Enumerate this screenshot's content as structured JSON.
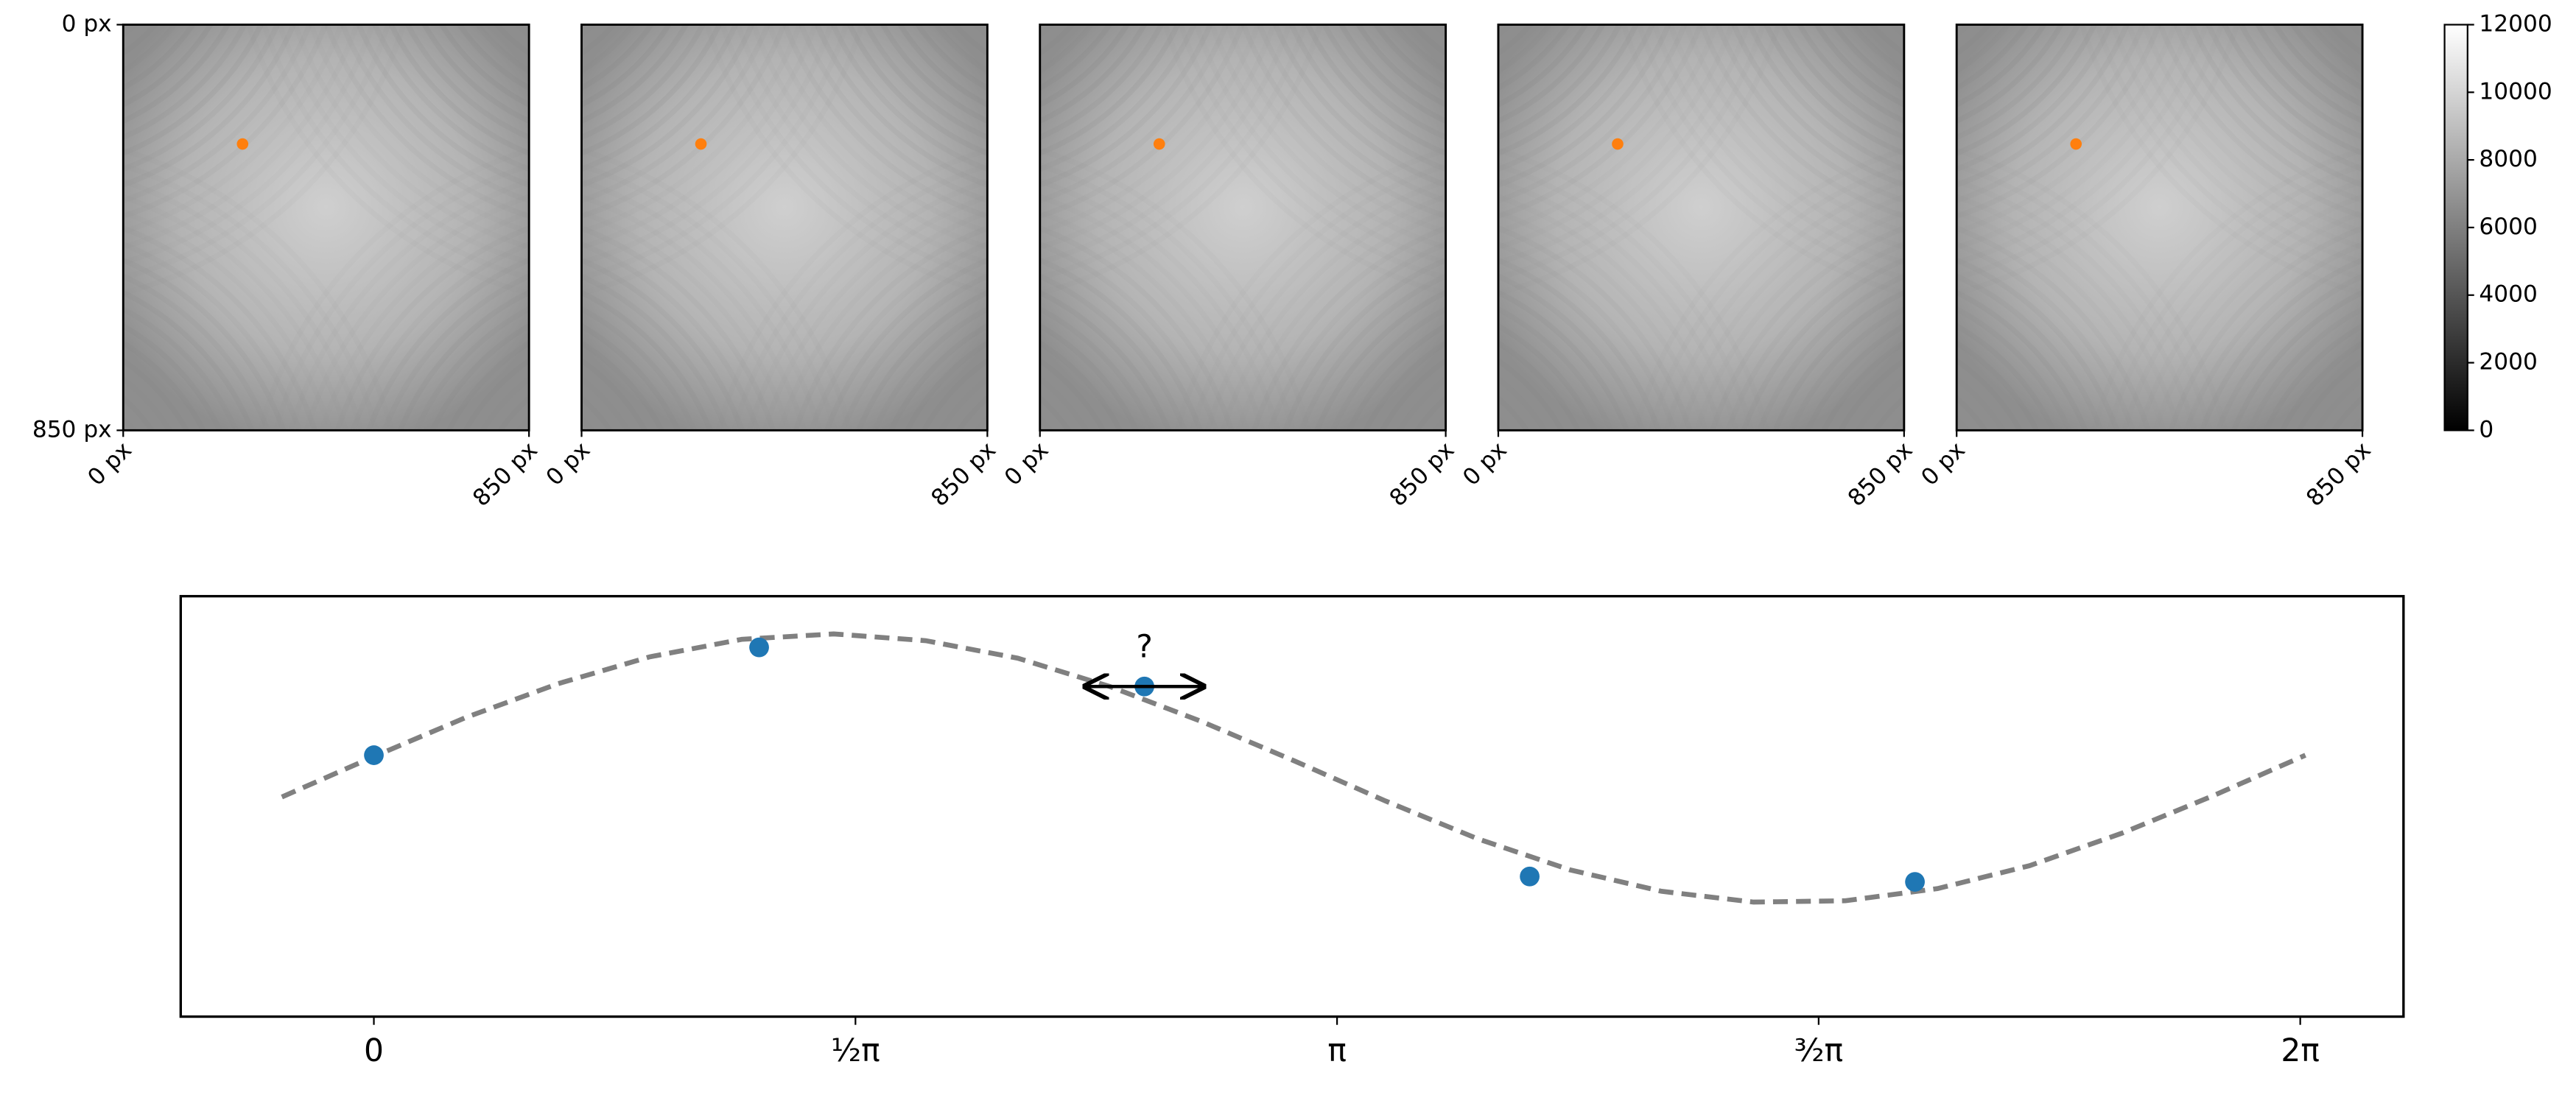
{
  "chart_data": [
    {
      "type": "image",
      "xlim": [
        0,
        850
      ],
      "ylim": [
        850,
        0
      ],
      "xticks": [
        {
          "value": 0,
          "label": "0 px"
        },
        {
          "value": 850,
          "label": "850 px"
        }
      ],
      "yticks": [
        {
          "value": 0,
          "label": "0 px"
        },
        {
          "value": 850,
          "label": "850 px"
        }
      ],
      "marker_color": "#ff7f0e",
      "panels": [
        {
          "marker": {
            "x": 250,
            "y": 250
          }
        },
        {
          "marker": {
            "x": 250,
            "y": 250
          }
        },
        {
          "marker": {
            "x": 250,
            "y": 250
          }
        },
        {
          "marker": {
            "x": 250,
            "y": 250
          }
        },
        {
          "marker": {
            "x": 250,
            "y": 250
          }
        }
      ]
    },
    {
      "type": "colorbar",
      "ylim": [
        0,
        12000
      ],
      "yticks": [
        0,
        2000,
        4000,
        6000,
        8000,
        10000,
        12000
      ]
    },
    {
      "type": "scatter",
      "xlim": [
        -0.63,
        6.62
      ],
      "ylim": [
        -1.84,
        1.28
      ],
      "xticks": [
        {
          "value": 0,
          "label": "0"
        },
        {
          "value": 1.5708,
          "label": "½π"
        },
        {
          "value": 3.1416,
          "label": "π"
        },
        {
          "value": 4.7124,
          "label": "³⁄₂π"
        },
        {
          "value": 6.2832,
          "label": "2π"
        }
      ],
      "points": {
        "color": "#1f77b4",
        "x": [
          0,
          1.2566,
          2.5133,
          3.7699,
          5.0265
        ],
        "values": [
          0.1,
          0.9,
          0.61,
          -0.8,
          -0.84
        ]
      },
      "curve": {
        "color": "#808080",
        "x": [
          -0.3,
          0,
          0.3,
          0.6,
          0.9,
          1.2,
          1.5,
          1.8,
          2.1,
          2.4,
          2.7,
          3.0,
          3.3,
          3.6,
          3.9,
          4.2,
          4.5,
          4.8,
          5.1,
          5.4,
          5.7,
          6.0,
          6.3
        ],
        "values": [
          -0.21,
          0.09,
          0.38,
          0.63,
          0.83,
          0.96,
          1.0,
          0.95,
          0.82,
          0.61,
          0.35,
          0.06,
          -0.24,
          -0.52,
          -0.75,
          -0.91,
          -0.99,
          -0.98,
          -0.89,
          -0.72,
          -0.48,
          -0.2,
          0.1
        ]
      },
      "annotation": {
        "text": "?",
        "x": 2.5133,
        "y": 0.61
      }
    }
  ]
}
